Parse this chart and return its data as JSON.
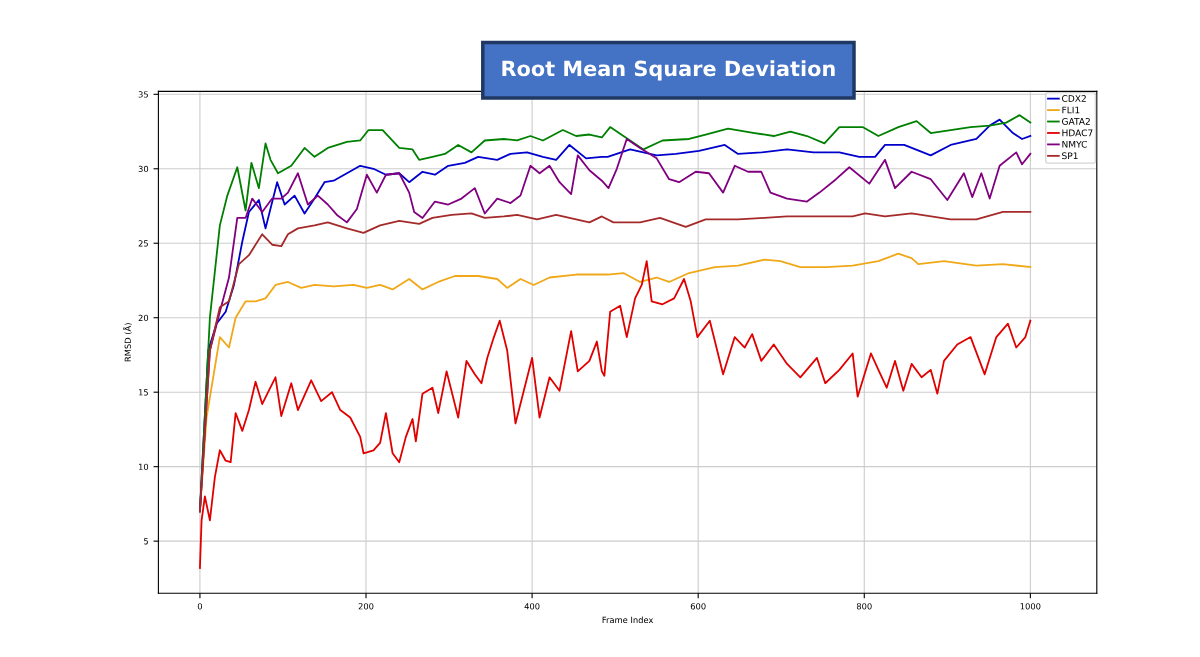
{
  "chart_data": {
    "type": "line",
    "title": "Root Mean Square Deviation",
    "xlabel": "Frame Index",
    "ylabel": "RMSD (Å)",
    "xlim": [
      -50,
      1080
    ],
    "ylim": [
      1.5,
      35.2
    ],
    "xticks": [
      0,
      200,
      400,
      600,
      800,
      1000
    ],
    "yticks": [
      5,
      10,
      15,
      20,
      25,
      30,
      35
    ],
    "grid": true,
    "legend": "top right",
    "line_style": "solid",
    "marker": "none",
    "series": [
      {
        "name": "CDX2",
        "color": "#0000cc",
        "x": [
          0,
          10,
          20,
          31,
          41,
          51,
          59,
          71,
          79,
          93,
          102,
          114,
          126,
          138,
          150,
          161,
          177,
          193,
          209,
          224,
          240,
          252,
          268,
          283,
          299,
          319,
          335,
          358,
          374,
          394,
          413,
          429,
          445,
          465,
          484,
          491,
          518,
          550,
          573,
          601,
          632,
          648,
          676,
          707,
          739,
          770,
          794,
          813,
          825,
          848,
          880,
          904,
          935,
          951,
          963,
          979,
          990,
          1000
        ],
        "values": [
          7,
          17.8,
          19.6,
          20.4,
          22.2,
          25.1,
          27.1,
          27.9,
          26.0,
          29.1,
          27.6,
          28.2,
          27.0,
          28.0,
          29.1,
          29.2,
          29.7,
          30.2,
          30.0,
          29.6,
          29.7,
          29.1,
          29.8,
          29.6,
          30.2,
          30.4,
          30.8,
          30.6,
          31.0,
          31.1,
          30.8,
          30.6,
          31.6,
          30.7,
          30.8,
          30.8,
          31.3,
          30.9,
          31.0,
          31.2,
          31.6,
          31.0,
          31.1,
          31.3,
          31.1,
          31.1,
          30.8,
          30.8,
          31.6,
          31.6,
          30.9,
          31.6,
          32.0,
          32.9,
          33.3,
          32.4,
          32.0,
          32.2
        ]
      },
      {
        "name": "FLI1",
        "color": "#f0a818",
        "x": [
          0,
          8,
          16,
          24,
          35,
          43,
          55,
          67,
          79,
          91,
          106,
          122,
          138,
          161,
          185,
          201,
          217,
          232,
          252,
          268,
          287,
          307,
          335,
          358,
          370,
          386,
          402,
          421,
          453,
          484,
          491,
          510,
          530,
          550,
          565,
          589,
          620,
          648,
          680,
          699,
          723,
          754,
          786,
          817,
          841,
          857,
          865,
          896,
          935,
          967,
          1000
        ],
        "values": [
          7,
          13.3,
          16.0,
          18.7,
          18.0,
          20.0,
          21.1,
          21.1,
          21.3,
          22.2,
          22.4,
          22.0,
          22.2,
          22.1,
          22.2,
          22.0,
          22.2,
          21.9,
          22.6,
          21.9,
          22.4,
          22.8,
          22.8,
          22.6,
          22.0,
          22.6,
          22.2,
          22.7,
          22.9,
          22.9,
          22.9,
          23.0,
          22.4,
          22.7,
          22.4,
          23.0,
          23.4,
          23.5,
          23.9,
          23.8,
          23.4,
          23.4,
          23.5,
          23.8,
          24.3,
          24.0,
          23.6,
          23.8,
          23.5,
          23.6,
          23.4
        ]
      },
      {
        "name": "GATA2",
        "color": "#008000",
        "x": [
          0,
          12,
          24,
          33,
          45,
          55,
          62,
          71,
          79,
          85,
          94,
          110,
          126,
          138,
          154,
          177,
          193,
          203,
          220,
          240,
          256,
          264,
          280,
          295,
          311,
          327,
          343,
          366,
          382,
          398,
          413,
          437,
          453,
          469,
          484,
          494,
          510,
          534,
          557,
          589,
          609,
          636,
          668,
          691,
          711,
          731,
          752,
          770,
          798,
          817,
          841,
          863,
          880,
          904,
          928,
          951,
          971,
          987,
          1000
        ],
        "values": [
          7,
          20.0,
          26.2,
          28.2,
          30.1,
          27.2,
          30.4,
          28.7,
          31.7,
          30.6,
          29.7,
          30.2,
          31.4,
          30.8,
          31.4,
          31.8,
          31.9,
          32.6,
          32.6,
          31.4,
          31.3,
          30.6,
          30.8,
          31.0,
          31.6,
          31.1,
          31.9,
          32.0,
          31.9,
          32.2,
          31.9,
          32.6,
          32.2,
          32.3,
          32.1,
          32.8,
          32.2,
          31.3,
          31.9,
          32.0,
          32.3,
          32.7,
          32.4,
          32.2,
          32.5,
          32.2,
          31.7,
          32.8,
          32.8,
          32.2,
          32.8,
          33.2,
          32.4,
          32.6,
          32.8,
          32.9,
          33.1,
          33.6,
          33.1
        ]
      },
      {
        "name": "HDAC7",
        "color": "#e00000",
        "x": [
          0,
          2,
          6,
          12,
          18,
          24,
          31,
          37,
          43,
          51,
          59,
          67,
          75,
          83,
          91,
          98,
          110,
          118,
          134,
          146,
          159,
          169,
          181,
          193,
          197,
          209,
          217,
          224,
          232,
          240,
          248,
          256,
          260,
          268,
          280,
          287,
          297,
          311,
          321,
          331,
          339,
          346,
          354,
          361,
          370,
          380,
          390,
          400,
          409,
          421,
          433,
          447,
          455,
          469,
          478,
          484,
          487,
          494,
          506,
          514,
          524,
          532,
          538,
          544,
          557,
          571,
          583,
          591,
          599,
          614,
          630,
          644,
          656,
          665,
          676,
          691,
          707,
          723,
          743,
          753,
          770,
          786,
          792,
          808,
          817,
          827,
          837,
          847,
          857,
          869,
          880,
          888,
          896,
          912,
          928,
          945,
          959,
          973,
          983,
          994,
          1000
        ],
        "values": [
          3.2,
          6.4,
          8.0,
          6.4,
          9.3,
          11.1,
          10.4,
          10.3,
          13.6,
          12.4,
          13.8,
          15.7,
          14.2,
          15.1,
          16.0,
          13.4,
          15.6,
          13.8,
          15.8,
          14.4,
          15.0,
          13.8,
          13.3,
          12.0,
          10.9,
          11.1,
          11.6,
          13.6,
          10.9,
          10.3,
          12.0,
          13.2,
          11.7,
          14.9,
          15.3,
          13.6,
          16.4,
          13.3,
          17.1,
          16.2,
          15.6,
          17.3,
          18.7,
          19.8,
          17.8,
          12.9,
          15.1,
          17.3,
          13.3,
          16.0,
          15.1,
          19.1,
          16.4,
          17.1,
          18.4,
          16.4,
          16.1,
          20.4,
          20.8,
          18.7,
          21.3,
          22.2,
          23.8,
          21.1,
          20.9,
          21.3,
          22.6,
          21.1,
          18.7,
          19.8,
          16.2,
          18.7,
          18.0,
          18.9,
          17.1,
          18.2,
          16.9,
          16.0,
          17.3,
          15.6,
          16.5,
          17.6,
          14.7,
          17.6,
          16.5,
          15.3,
          17.1,
          15.1,
          16.9,
          16.0,
          16.5,
          14.9,
          17.1,
          18.2,
          18.7,
          16.2,
          18.7,
          19.6,
          18.0,
          18.7,
          19.8
        ]
      },
      {
        "name": "NMYC",
        "color": "#800080",
        "x": [
          0,
          12,
          24,
          35,
          45,
          55,
          63,
          75,
          87,
          98,
          106,
          118,
          130,
          142,
          154,
          165,
          177,
          189,
          201,
          213,
          224,
          240,
          252,
          258,
          268,
          283,
          299,
          315,
          331,
          343,
          358,
          374,
          386,
          398,
          409,
          421,
          433,
          447,
          455,
          469,
          484,
          492,
          502,
          514,
          530,
          550,
          565,
          577,
          597,
          613,
          630,
          644,
          660,
          676,
          687,
          707,
          731,
          746,
          766,
          782,
          806,
          825,
          837,
          857,
          880,
          900,
          920,
          930,
          941,
          951,
          963,
          983,
          990,
          1000
        ],
        "values": [
          7,
          17.8,
          20.4,
          22.7,
          26.7,
          26.7,
          28.0,
          27.1,
          28.0,
          28.0,
          28.4,
          29.7,
          27.6,
          28.2,
          27.6,
          26.9,
          26.4,
          27.3,
          29.6,
          28.4,
          29.6,
          29.7,
          28.4,
          27.1,
          26.7,
          27.8,
          27.6,
          28.0,
          28.7,
          27.0,
          28.0,
          27.7,
          28.2,
          30.2,
          29.7,
          30.2,
          29.1,
          28.3,
          30.9,
          29.9,
          29.2,
          28.7,
          30.0,
          32.0,
          31.4,
          30.7,
          29.3,
          29.1,
          29.8,
          29.7,
          28.4,
          30.2,
          29.8,
          29.8,
          28.4,
          28.0,
          27.8,
          28.4,
          29.3,
          30.1,
          29.0,
          30.6,
          28.7,
          29.8,
          29.3,
          27.9,
          29.7,
          28.1,
          29.7,
          28.0,
          30.2,
          31.1,
          30.3,
          31.0
        ]
      },
      {
        "name": "SP1",
        "color": "#a52a2a",
        "x": [
          0,
          12,
          24,
          35,
          47,
          59,
          75,
          87,
          98,
          106,
          118,
          138,
          154,
          177,
          197,
          217,
          240,
          264,
          280,
          303,
          327,
          343,
          366,
          382,
          406,
          429,
          453,
          469,
          484,
          498,
          530,
          554,
          585,
          609,
          648,
          680,
          707,
          746,
          786,
          801,
          825,
          857,
          904,
          935,
          967,
          1000
        ],
        "values": [
          7,
          17.8,
          20.7,
          21.1,
          23.6,
          24.2,
          25.6,
          24.9,
          24.8,
          25.6,
          26.0,
          26.2,
          26.4,
          26.0,
          25.7,
          26.2,
          26.5,
          26.3,
          26.7,
          26.9,
          27.0,
          26.7,
          26.8,
          26.9,
          26.6,
          26.9,
          26.6,
          26.4,
          26.8,
          26.4,
          26.4,
          26.7,
          26.1,
          26.6,
          26.6,
          26.7,
          26.8,
          26.8,
          26.8,
          27.0,
          26.8,
          27.0,
          26.6,
          26.6,
          27.1,
          27.1
        ]
      }
    ]
  }
}
